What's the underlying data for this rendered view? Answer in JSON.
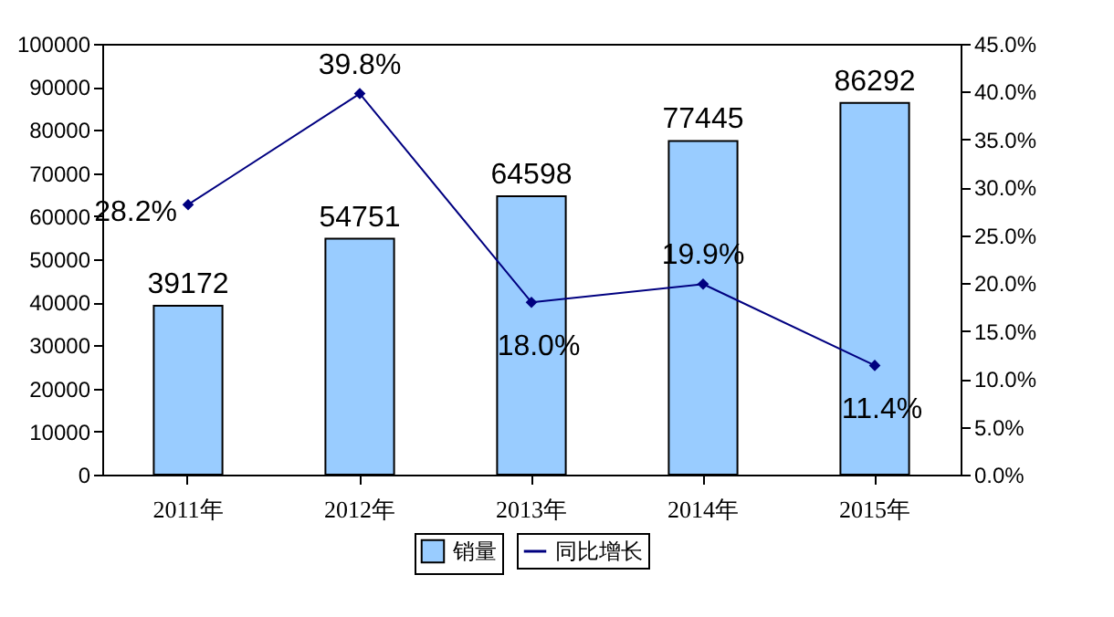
{
  "chart_data": {
    "type": "bar",
    "categories": [
      "2011年",
      "2012年",
      "2013年",
      "2014年",
      "2015年"
    ],
    "series": [
      {
        "name": "销量",
        "color": "#99ccff",
        "values": [
          39172,
          54751,
          64598,
          77445,
          86292
        ],
        "value_labels": [
          "39172",
          "54751",
          "64598",
          "77445",
          "86292"
        ]
      },
      {
        "name": "同比增长",
        "type": "line",
        "axis": "y2",
        "color": "#000080",
        "marker": "diamond",
        "values": [
          28.2,
          39.8,
          18.0,
          19.9,
          11.4
        ],
        "value_labels": [
          "28.2%",
          "39.8%",
          "18.0%",
          "19.9%",
          "11.4%"
        ]
      }
    ],
    "ylim": [
      0,
      100000
    ],
    "yticks": [
      0,
      10000,
      20000,
      30000,
      40000,
      50000,
      60000,
      70000,
      80000,
      90000,
      100000
    ],
    "y2lim": [
      0,
      45
    ],
    "y2ticks": [
      {
        "value": 0,
        "label": "0.0%"
      },
      {
        "value": 5,
        "label": "5.0%"
      },
      {
        "value": 10,
        "label": "10.0%"
      },
      {
        "value": 15,
        "label": "15.0%"
      },
      {
        "value": 20,
        "label": "20.0%"
      },
      {
        "value": 25,
        "label": "25.0%"
      },
      {
        "value": 30,
        "label": "30.0%"
      },
      {
        "value": 35,
        "label": "35.0%"
      },
      {
        "value": 40,
        "label": "40.0%"
      },
      {
        "value": 45,
        "label": "45.0%"
      }
    ],
    "grid": false,
    "legend": "bottom"
  }
}
